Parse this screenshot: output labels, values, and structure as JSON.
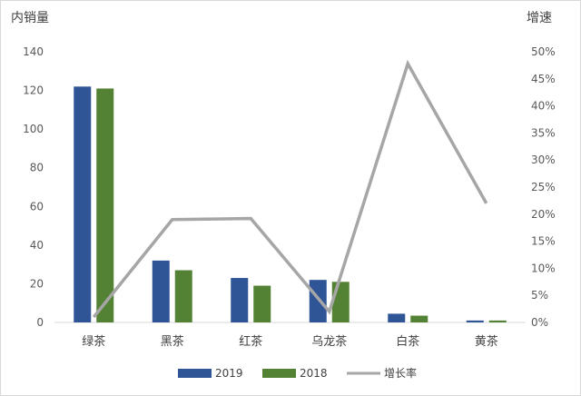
{
  "chart_data": {
    "type": "bar",
    "title": "",
    "ylabel_left": "内销量",
    "ylabel_right": "增速",
    "categories": [
      "绿茶",
      "黑茶",
      "红茶",
      "乌龙茶",
      "白茶",
      "黄茶"
    ],
    "ylim_left": [
      0,
      140
    ],
    "yticks_left": [
      "0",
      "20",
      "40",
      "60",
      "80",
      "100",
      "120",
      "140"
    ],
    "ylim_right": [
      0,
      0.5
    ],
    "yticks_right": [
      "0%",
      "5%",
      "10%",
      "15%",
      "20%",
      "25%",
      "30%",
      "35%",
      "40%",
      "45%",
      "50%"
    ],
    "series": [
      {
        "name": "2019",
        "type": "bar",
        "axis": "left",
        "color": "#2f5597",
        "values": [
          122,
          32,
          23,
          22,
          4.5,
          1
        ]
      },
      {
        "name": "2018",
        "type": "bar",
        "axis": "left",
        "color": "#548235",
        "values": [
          121,
          27,
          19,
          21,
          3.5,
          1
        ]
      },
      {
        "name": "增长率",
        "type": "line",
        "axis": "right",
        "color": "#a6a6a6",
        "values": [
          0.01,
          0.19,
          0.192,
          0.02,
          0.478,
          0.22
        ]
      }
    ],
    "grid": false,
    "legend": "bottom"
  }
}
